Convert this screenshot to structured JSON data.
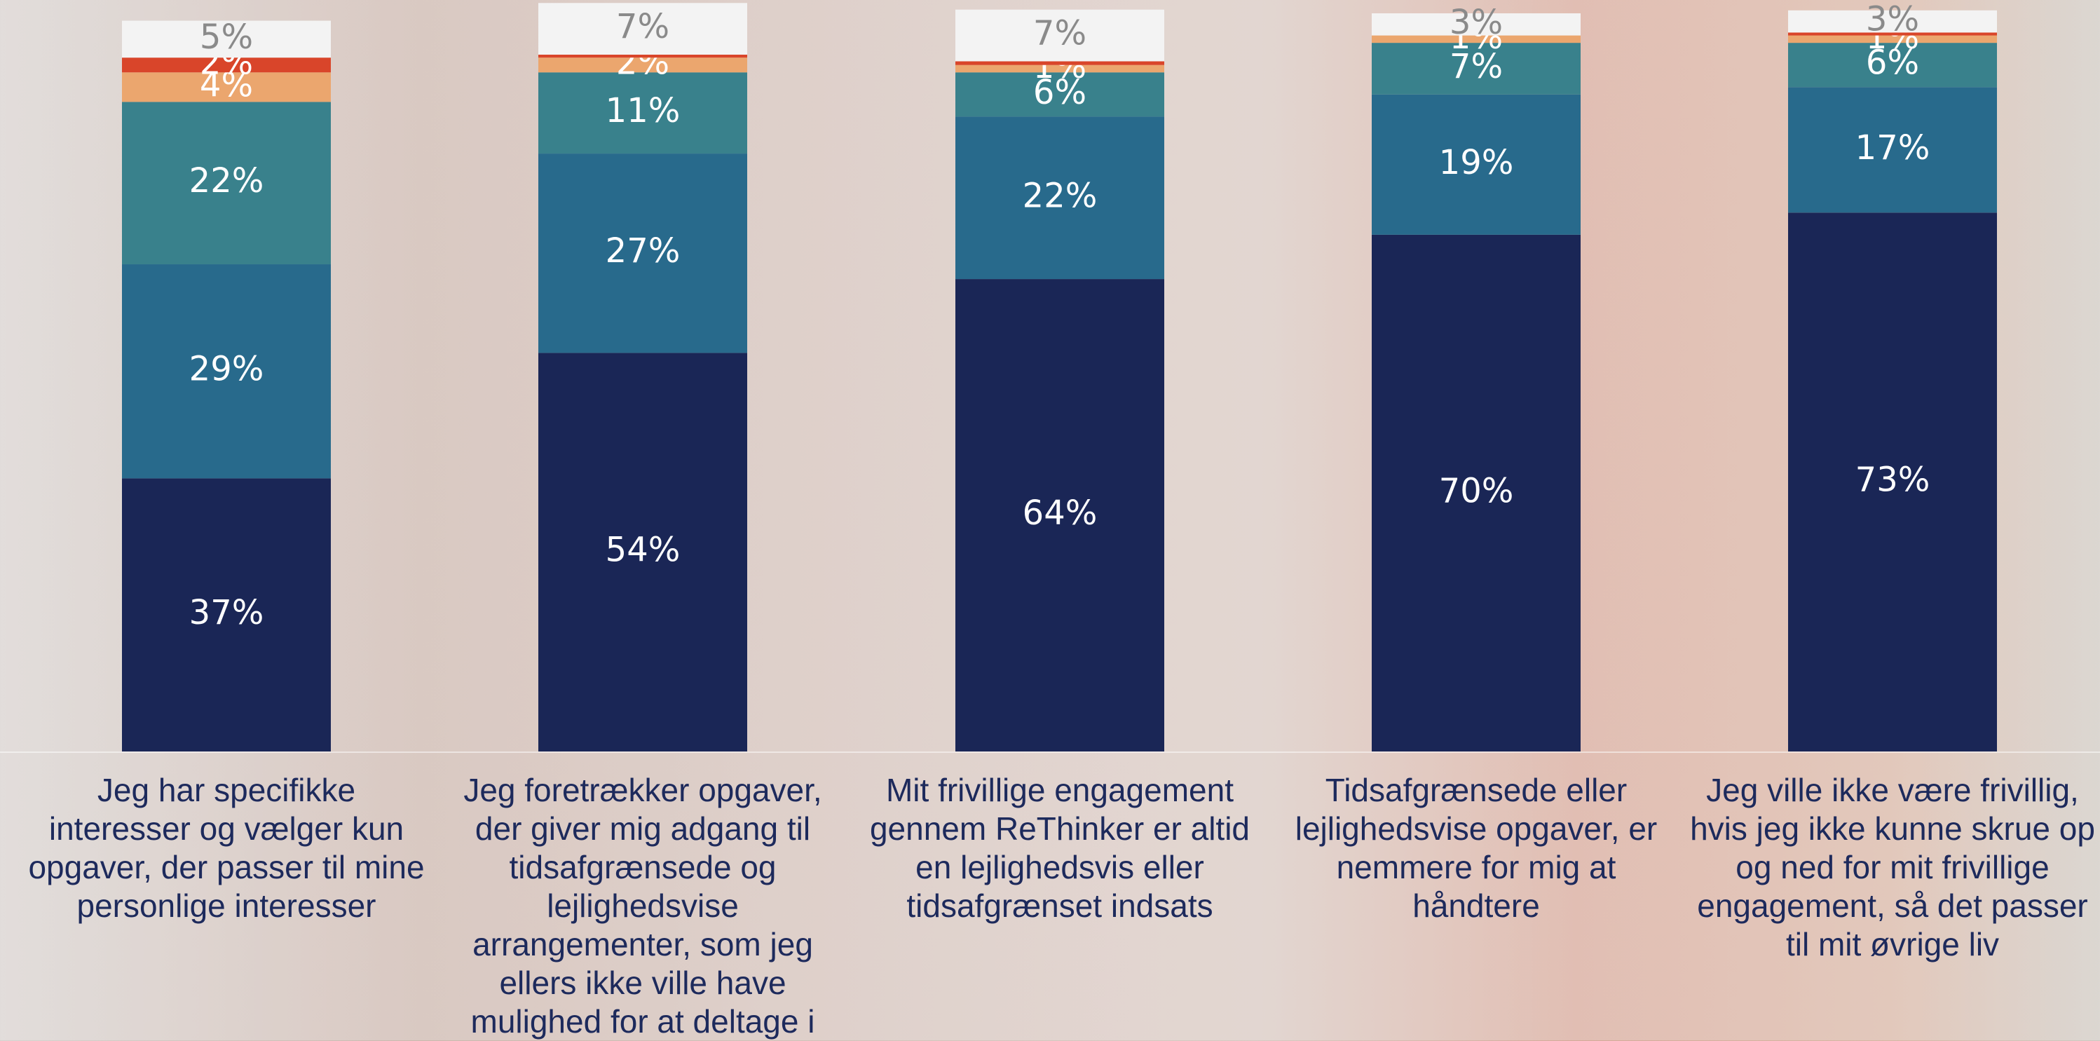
{
  "chart_data": {
    "type": "stacked_bar",
    "categories": [
      "Jeg har specifikke interesser og vælger kun opgaver, der passer til mine personlige interesser",
      "Jeg foretrækker opgaver, der giver mig adgang til tidsafgrænsede og lejlighedsvise arrangementer, som jeg ellers ikke ville have mulighed for at deltage i",
      "Mit frivillige engagement gennem ReThinker er altid en lejlighedsvis eller tidsafgrænset indsats",
      "Tidsafgrænsede eller lejlighedsvise opgaver, er nemmere for mig at håndtere",
      "Jeg ville ikke være frivillig, hvis jeg ikke kunne skrue op og ned for mit frivillige engagement, så det passer til mit øvrige liv"
    ],
    "series": [
      {
        "color": "#1a2656",
        "values": [
          37,
          54,
          64,
          70,
          73
        ],
        "value_labels": [
          "37%",
          "54%",
          "64%",
          "70%",
          "73%"
        ]
      },
      {
        "color": "#286a8c",
        "values": [
          29,
          27,
          22,
          19,
          17
        ],
        "value_labels": [
          "29%",
          "27%",
          "22%",
          "19%",
          "17%"
        ]
      },
      {
        "color": "#39818c",
        "values": [
          22,
          11,
          6,
          7,
          6
        ],
        "value_labels": [
          "22%",
          "11%",
          "6%",
          "7%",
          "6%"
        ]
      },
      {
        "color": "#eba66e",
        "values": [
          4,
          2,
          1,
          1,
          1
        ],
        "value_labels": [
          "4%",
          "2%",
          "1%",
          "1%",
          "1%"
        ]
      },
      {
        "color": "#d9452a",
        "values": [
          2,
          0.4,
          0.5,
          0,
          0.4
        ],
        "value_labels": [
          "2%",
          null,
          null,
          null,
          null
        ]
      },
      {
        "color": "#f3f3f3",
        "values": [
          5,
          7,
          7,
          3,
          3
        ],
        "value_labels": [
          "5%",
          "7%",
          "7%",
          "3%",
          "3%"
        ]
      }
    ],
    "ylim": [
      0,
      100
    ]
  }
}
